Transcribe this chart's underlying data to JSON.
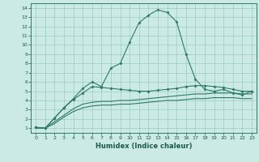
{
  "xlabel": "Humidex (Indice chaleur)",
  "bg_color": "#cceae4",
  "grid_color": "#99ccc4",
  "line_color": "#2d7a6a",
  "xlim": [
    -0.5,
    23.5
  ],
  "ylim": [
    0.5,
    14.5
  ],
  "xticks": [
    0,
    1,
    2,
    3,
    4,
    5,
    6,
    7,
    8,
    9,
    10,
    11,
    12,
    13,
    14,
    15,
    16,
    17,
    18,
    19,
    20,
    21,
    22,
    23
  ],
  "yticks": [
    1,
    2,
    3,
    4,
    5,
    6,
    7,
    8,
    9,
    10,
    11,
    12,
    13,
    14
  ],
  "line1_x": [
    0,
    1,
    2,
    3,
    4,
    5,
    6,
    7,
    8,
    9,
    10,
    11,
    12,
    13,
    14,
    15,
    16,
    17,
    18,
    19,
    20,
    21,
    22,
    23
  ],
  "line1_y": [
    1.1,
    1.0,
    2.1,
    3.2,
    4.2,
    5.3,
    6.0,
    5.5,
    7.5,
    8.0,
    10.3,
    12.4,
    13.2,
    13.8,
    13.5,
    12.5,
    9.0,
    6.3,
    5.2,
    5.0,
    5.2,
    4.8,
    4.6,
    5.0
  ],
  "line2_x": [
    0,
    1,
    2,
    3,
    4,
    5,
    6,
    7,
    8,
    9,
    10,
    11,
    12,
    13,
    14,
    15,
    16,
    17,
    18,
    19,
    20,
    21,
    22,
    23
  ],
  "line2_y": [
    1.1,
    1.0,
    2.1,
    3.2,
    4.1,
    4.8,
    5.5,
    5.4,
    5.3,
    5.2,
    5.1,
    5.0,
    5.0,
    5.1,
    5.2,
    5.3,
    5.5,
    5.6,
    5.6,
    5.5,
    5.4,
    5.2,
    5.0,
    5.0
  ],
  "line3_x": [
    0,
    1,
    2,
    3,
    4,
    5,
    6,
    7,
    8,
    9,
    10,
    11,
    12,
    13,
    14,
    15,
    16,
    17,
    18,
    19,
    20,
    21,
    22,
    23
  ],
  "line3_y": [
    1.0,
    1.0,
    1.7,
    2.4,
    3.1,
    3.6,
    3.8,
    3.9,
    3.9,
    4.0,
    4.0,
    4.1,
    4.2,
    4.3,
    4.4,
    4.5,
    4.6,
    4.7,
    4.7,
    4.8,
    4.8,
    4.8,
    4.7,
    4.7
  ],
  "line4_x": [
    0,
    1,
    2,
    3,
    4,
    5,
    6,
    7,
    8,
    9,
    10,
    11,
    12,
    13,
    14,
    15,
    16,
    17,
    18,
    19,
    20,
    21,
    22,
    23
  ],
  "line4_y": [
    1.0,
    1.0,
    1.5,
    2.2,
    2.8,
    3.2,
    3.4,
    3.5,
    3.5,
    3.6,
    3.6,
    3.7,
    3.8,
    3.9,
    4.0,
    4.0,
    4.1,
    4.2,
    4.2,
    4.3,
    4.3,
    4.3,
    4.2,
    4.2
  ]
}
